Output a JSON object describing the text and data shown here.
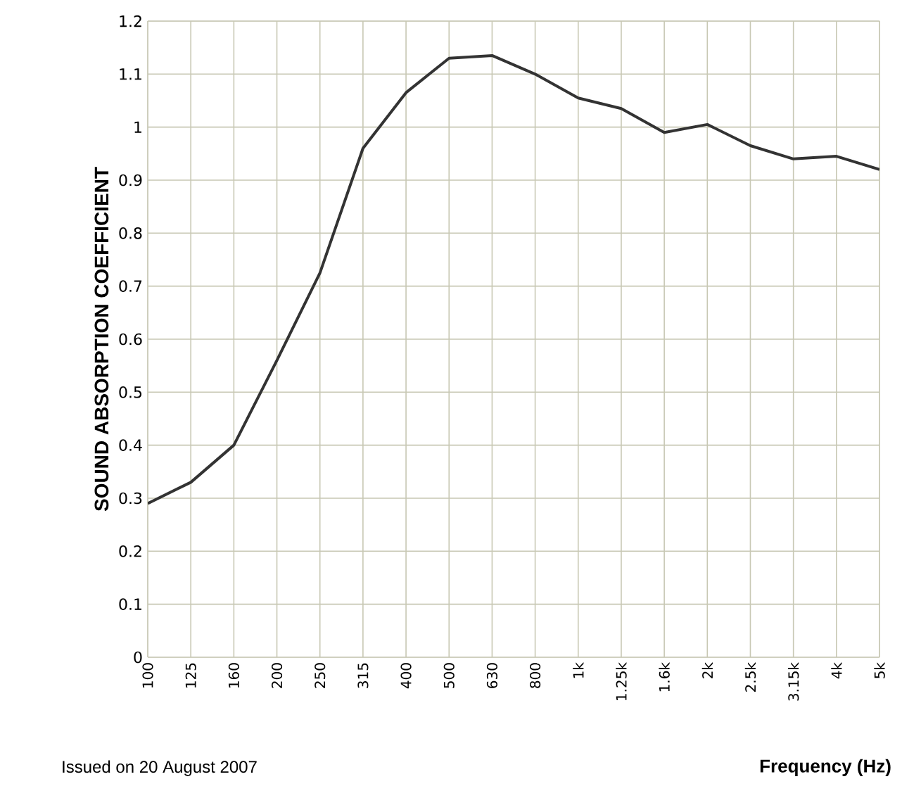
{
  "chart_data": {
    "type": "line",
    "categories": [
      "100",
      "125",
      "160",
      "200",
      "250",
      "315",
      "400",
      "500",
      "630",
      "800",
      "1k",
      "1.25k",
      "1.6k",
      "2k",
      "2.5k",
      "3.15k",
      "4k",
      "5k"
    ],
    "values": [
      0.29,
      0.33,
      0.4,
      0.56,
      0.725,
      0.96,
      1.065,
      1.13,
      1.135,
      1.1,
      1.055,
      1.035,
      0.99,
      1.005,
      0.965,
      0.94,
      0.945,
      0.92
    ],
    "color": "#333333",
    "ylim": [
      0,
      1.2
    ],
    "yticks": [
      0,
      0.1,
      0.2,
      0.3,
      0.4,
      0.5,
      0.6,
      0.7,
      0.8,
      0.9,
      1,
      1.1,
      1.2
    ],
    "xlabel": "Frequency (Hz)",
    "ylabel": "SOUND ABSORPTION COEFFICIENT",
    "annotations": [
      "Issued on 20 August 2007"
    ],
    "grid": true,
    "marker": "none",
    "line_style": "solid"
  }
}
